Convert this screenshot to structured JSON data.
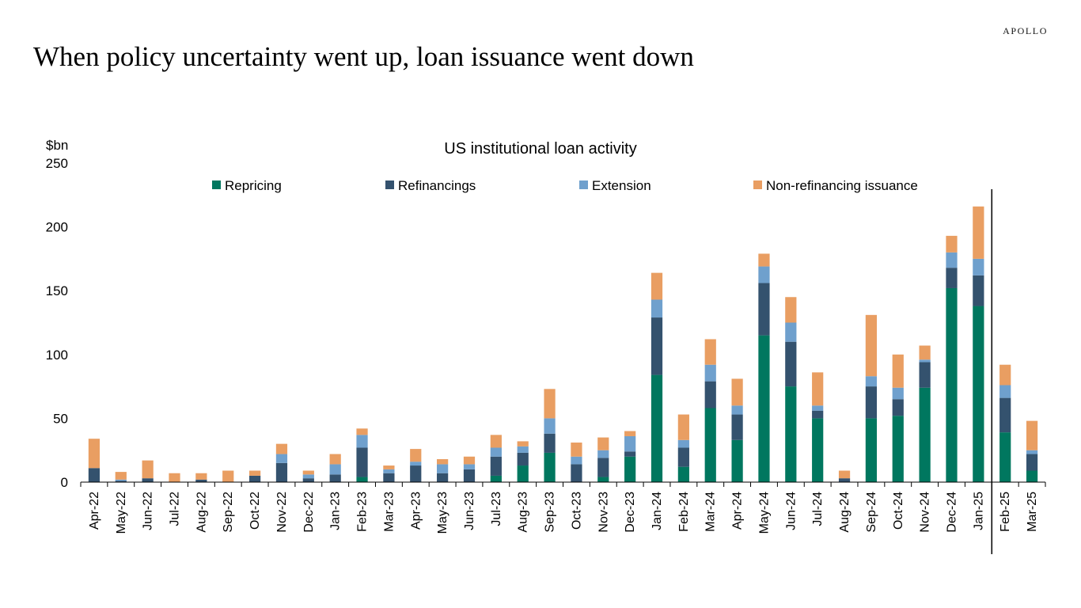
{
  "brand": "APOLLO",
  "headline": "When policy uncertainty went up, loan issuance went down",
  "colors": {
    "Repricing": "#00775f",
    "Refinancings": "#34526e",
    "Extension": "#6fa0cd",
    "Non-refinancing issuance": "#e99e62"
  },
  "chart_data": {
    "type": "bar",
    "stacked": true,
    "title": "US institutional loan activity",
    "ylabel": "$bn",
    "ylim": [
      0,
      250
    ],
    "yticks": [
      0,
      50,
      100,
      150,
      200,
      250
    ],
    "grid": false,
    "legend_position": "top",
    "separator_after_category": "Jan-25",
    "categories": [
      "Apr-22",
      "May-22",
      "Jun-22",
      "Jul-22",
      "Aug-22",
      "Sep-22",
      "Oct-22",
      "Nov-22",
      "Dec-22",
      "Jan-23",
      "Feb-23",
      "Mar-23",
      "Apr-23",
      "May-23",
      "Jun-23",
      "Jul-23",
      "Aug-23",
      "Sep-23",
      "Oct-23",
      "Nov-23",
      "Dec-23",
      "Jan-24",
      "Feb-24",
      "Mar-24",
      "Apr-24",
      "May-24",
      "Jun-24",
      "Jul-24",
      "Aug-24",
      "Sep-24",
      "Oct-24",
      "Nov-24",
      "Dec-24",
      "Jan-25",
      "Feb-25",
      "Mar-25"
    ],
    "series": [
      {
        "name": "Repricing",
        "values": [
          0,
          0,
          0,
          0,
          0,
          0,
          0,
          0,
          0,
          0,
          4,
          0,
          0,
          0,
          0,
          5,
          13,
          23,
          0,
          4,
          20,
          84,
          12,
          58,
          33,
          115,
          75,
          50,
          0,
          50,
          52,
          74,
          152,
          138,
          39,
          9
        ]
      },
      {
        "name": "Refinancings",
        "values": [
          11,
          1,
          3,
          0,
          2,
          0,
          5,
          15,
          3,
          6,
          23,
          7,
          13,
          7,
          10,
          15,
          10,
          15,
          14,
          15,
          4,
          45,
          15,
          21,
          20,
          41,
          35,
          6,
          3,
          25,
          13,
          20,
          16,
          24,
          27,
          13
        ]
      },
      {
        "name": "Extension",
        "values": [
          0,
          1,
          0,
          0,
          0,
          0,
          0,
          7,
          3,
          8,
          10,
          3,
          3,
          7,
          4,
          7,
          5,
          12,
          6,
          6,
          12,
          14,
          6,
          13,
          7,
          13,
          15,
          4,
          0,
          8,
          9,
          2,
          12,
          13,
          10,
          3
        ]
      },
      {
        "name": "Non-refinancing issuance",
        "values": [
          23,
          6,
          14,
          7,
          5,
          9,
          4,
          8,
          3,
          8,
          5,
          3,
          10,
          4,
          6,
          10,
          4,
          23,
          11,
          10,
          4,
          21,
          20,
          20,
          21,
          10,
          20,
          26,
          6,
          48,
          26,
          11,
          13,
          41,
          16,
          23
        ]
      }
    ]
  }
}
